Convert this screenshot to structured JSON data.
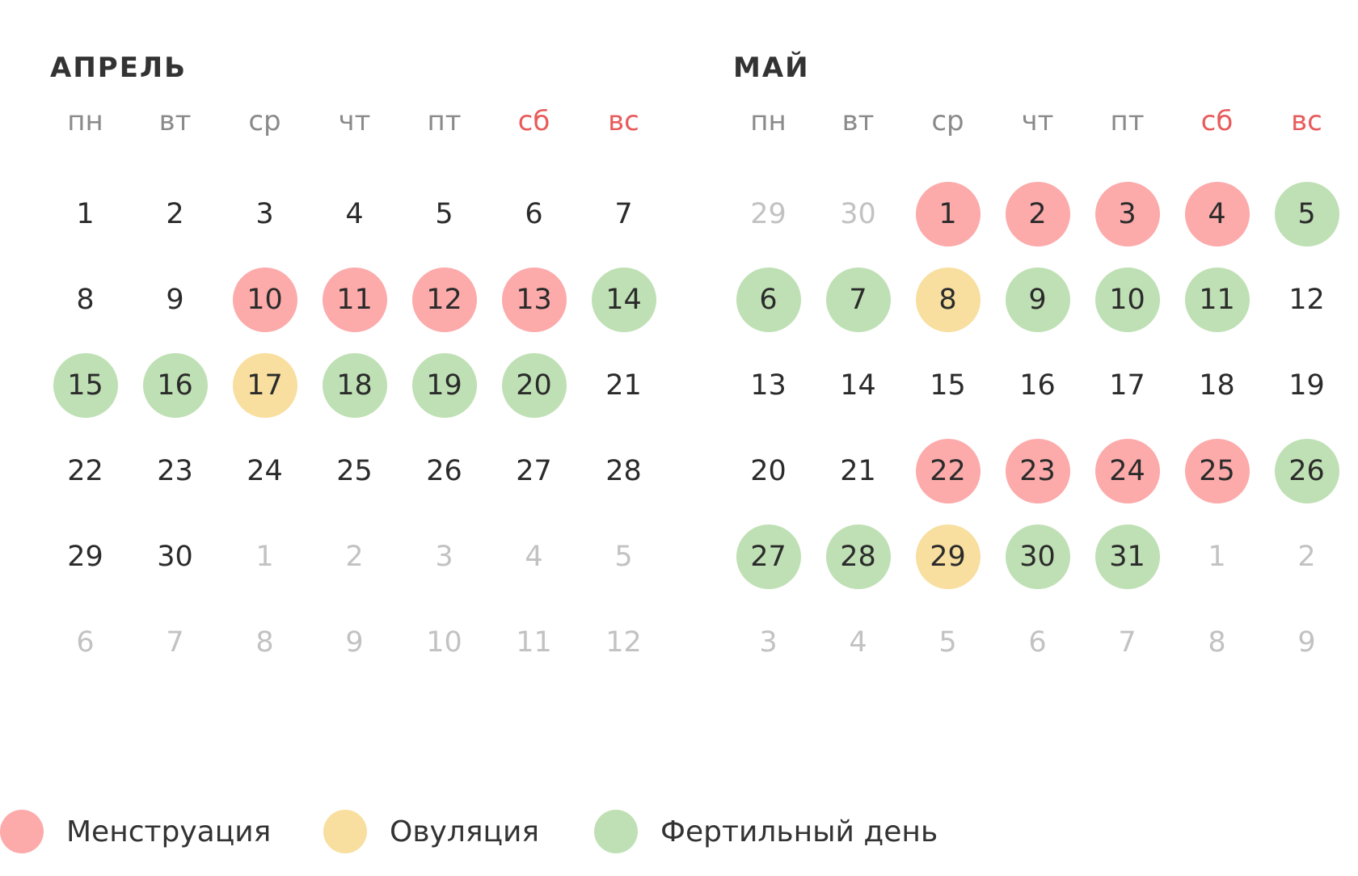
{
  "weekdays": [
    "пн",
    "вт",
    "ср",
    "чт",
    "пт",
    "сб",
    "вс"
  ],
  "months": [
    {
      "title": "АПРЕЛЬ",
      "days": [
        {
          "d": "1",
          "state": "normal"
        },
        {
          "d": "2",
          "state": "normal"
        },
        {
          "d": "3",
          "state": "normal"
        },
        {
          "d": "4",
          "state": "normal"
        },
        {
          "d": "5",
          "state": "normal"
        },
        {
          "d": "6",
          "state": "normal"
        },
        {
          "d": "7",
          "state": "normal"
        },
        {
          "d": "8",
          "state": "normal"
        },
        {
          "d": "9",
          "state": "normal"
        },
        {
          "d": "10",
          "state": "menstruation"
        },
        {
          "d": "11",
          "state": "menstruation"
        },
        {
          "d": "12",
          "state": "menstruation"
        },
        {
          "d": "13",
          "state": "menstruation"
        },
        {
          "d": "14",
          "state": "fertile"
        },
        {
          "d": "15",
          "state": "fertile"
        },
        {
          "d": "16",
          "state": "fertile"
        },
        {
          "d": "17",
          "state": "ovulation"
        },
        {
          "d": "18",
          "state": "fertile"
        },
        {
          "d": "19",
          "state": "fertile"
        },
        {
          "d": "20",
          "state": "fertile"
        },
        {
          "d": "21",
          "state": "normal"
        },
        {
          "d": "22",
          "state": "normal"
        },
        {
          "d": "23",
          "state": "normal"
        },
        {
          "d": "24",
          "state": "normal"
        },
        {
          "d": "25",
          "state": "normal"
        },
        {
          "d": "26",
          "state": "normal"
        },
        {
          "d": "27",
          "state": "normal"
        },
        {
          "d": "28",
          "state": "normal"
        },
        {
          "d": "29",
          "state": "normal"
        },
        {
          "d": "30",
          "state": "normal"
        },
        {
          "d": "1",
          "state": "outside"
        },
        {
          "d": "2",
          "state": "outside"
        },
        {
          "d": "3",
          "state": "outside"
        },
        {
          "d": "4",
          "state": "outside"
        },
        {
          "d": "5",
          "state": "outside"
        },
        {
          "d": "6",
          "state": "outside"
        },
        {
          "d": "7",
          "state": "outside"
        },
        {
          "d": "8",
          "state": "outside"
        },
        {
          "d": "9",
          "state": "outside"
        },
        {
          "d": "10",
          "state": "outside"
        },
        {
          "d": "11",
          "state": "outside"
        },
        {
          "d": "12",
          "state": "outside"
        }
      ]
    },
    {
      "title": "МАЙ",
      "days": [
        {
          "d": "29",
          "state": "outside"
        },
        {
          "d": "30",
          "state": "outside"
        },
        {
          "d": "1",
          "state": "menstruation"
        },
        {
          "d": "2",
          "state": "menstruation"
        },
        {
          "d": "3",
          "state": "menstruation"
        },
        {
          "d": "4",
          "state": "menstruation"
        },
        {
          "d": "5",
          "state": "fertile"
        },
        {
          "d": "6",
          "state": "fertile"
        },
        {
          "d": "7",
          "state": "fertile"
        },
        {
          "d": "8",
          "state": "ovulation"
        },
        {
          "d": "9",
          "state": "fertile"
        },
        {
          "d": "10",
          "state": "fertile"
        },
        {
          "d": "11",
          "state": "fertile"
        },
        {
          "d": "12",
          "state": "normal"
        },
        {
          "d": "13",
          "state": "normal"
        },
        {
          "d": "14",
          "state": "normal"
        },
        {
          "d": "15",
          "state": "normal"
        },
        {
          "d": "16",
          "state": "normal"
        },
        {
          "d": "17",
          "state": "normal"
        },
        {
          "d": "18",
          "state": "normal"
        },
        {
          "d": "19",
          "state": "normal"
        },
        {
          "d": "20",
          "state": "normal"
        },
        {
          "d": "21",
          "state": "normal"
        },
        {
          "d": "22",
          "state": "menstruation"
        },
        {
          "d": "23",
          "state": "menstruation"
        },
        {
          "d": "24",
          "state": "menstruation"
        },
        {
          "d": "25",
          "state": "menstruation"
        },
        {
          "d": "26",
          "state": "fertile"
        },
        {
          "d": "27",
          "state": "fertile"
        },
        {
          "d": "28",
          "state": "fertile"
        },
        {
          "d": "29",
          "state": "ovulation"
        },
        {
          "d": "30",
          "state": "fertile"
        },
        {
          "d": "31",
          "state": "fertile"
        },
        {
          "d": "1",
          "state": "outside"
        },
        {
          "d": "2",
          "state": "outside"
        },
        {
          "d": "3",
          "state": "outside"
        },
        {
          "d": "4",
          "state": "outside"
        },
        {
          "d": "5",
          "state": "outside"
        },
        {
          "d": "6",
          "state": "outside"
        },
        {
          "d": "7",
          "state": "outside"
        },
        {
          "d": "8",
          "state": "outside"
        },
        {
          "d": "9",
          "state": "outside"
        }
      ]
    }
  ],
  "legend": [
    {
      "label": "Менструация",
      "color": "#fcaaaa"
    },
    {
      "label": "Овуляция",
      "color": "#f8df9f"
    },
    {
      "label": "Фертильный день",
      "color": "#bfe0b4"
    }
  ],
  "colors": {
    "menstruation": "#fcaaaa",
    "ovulation": "#f8df9f",
    "fertile": "#bfe0b4",
    "weekend_label": "#e85b5b",
    "weekday_label": "#8a8a8a",
    "outside_day": "#c2c2c2",
    "day_text": "#2b2b2b"
  }
}
